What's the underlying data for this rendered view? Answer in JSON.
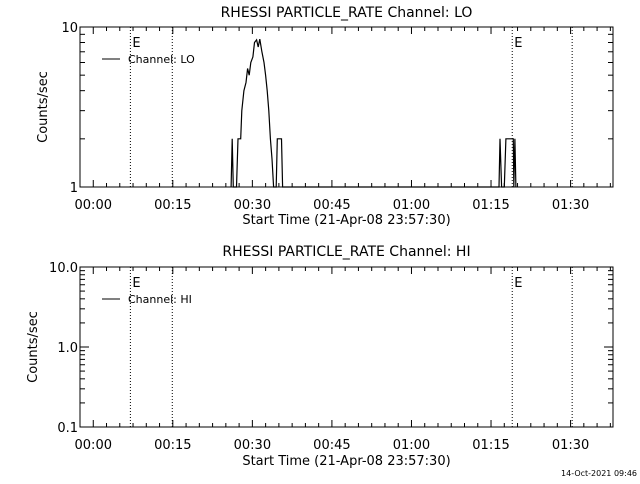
{
  "footer": {
    "timestamp": "14-Oct-2021 09:46"
  },
  "chart_data": [
    {
      "type": "line",
      "title": "RHESSI PARTICLE_RATE Channel: LO",
      "xlabel": "Start Time (21-Apr-08 23:57:30)",
      "ylabel": "Counts/sec",
      "x_unit": "minutes after start time",
      "x_ticks": [
        {
          "label": "00:00",
          "value": 2.5
        },
        {
          "label": "00:15",
          "value": 17.5
        },
        {
          "label": "00:30",
          "value": 32.5
        },
        {
          "label": "00:45",
          "value": 47.5
        },
        {
          "label": "01:00",
          "value": 62.5
        },
        {
          "label": "01:15",
          "value": 77.5
        },
        {
          "label": "01:30",
          "value": 92.5
        }
      ],
      "xlim": [
        0,
        100.5
      ],
      "yscale": "log",
      "ylim": [
        1,
        10
      ],
      "y_ticks": [
        {
          "label": "1",
          "value": 1
        },
        {
          "label": "10",
          "value": 10
        }
      ],
      "legend": {
        "position": "top-left",
        "entries": [
          "Channel: LO"
        ]
      },
      "markers": [
        {
          "x": 9.5,
          "label": "E"
        },
        {
          "x": 17.4,
          "label": ""
        },
        {
          "x": 81.5,
          "label": "E"
        },
        {
          "x": 92.8,
          "label": ""
        }
      ],
      "series": [
        {
          "name": "Channel: LO",
          "points": [
            [
              28.5,
              1
            ],
            [
              28.7,
              2
            ],
            [
              28.9,
              1
            ],
            [
              29.5,
              1
            ],
            [
              29.8,
              2
            ],
            [
              30.3,
              2
            ],
            [
              30.5,
              3
            ],
            [
              30.9,
              4
            ],
            [
              31.3,
              4.5
            ],
            [
              31.6,
              5.5
            ],
            [
              31.9,
              5
            ],
            [
              32.2,
              6
            ],
            [
              32.6,
              6.5
            ],
            [
              32.9,
              8
            ],
            [
              33.3,
              8.3
            ],
            [
              33.6,
              7.5
            ],
            [
              33.9,
              8.4
            ],
            [
              34.3,
              7
            ],
            [
              34.7,
              6
            ],
            [
              35.0,
              5
            ],
            [
              35.3,
              4
            ],
            [
              35.6,
              3
            ],
            [
              35.9,
              2
            ],
            [
              36.2,
              1.5
            ],
            [
              36.5,
              1
            ],
            [
              37.0,
              1
            ],
            [
              37.2,
              2
            ],
            [
              38.0,
              2
            ],
            [
              38.2,
              1
            ],
            [
              79.0,
              1
            ],
            [
              79.2,
              2
            ],
            [
              79.5,
              1
            ],
            [
              80.0,
              1
            ],
            [
              80.3,
              2
            ],
            [
              81.7,
              2
            ],
            [
              81.8,
              1
            ],
            [
              82.0,
              2
            ],
            [
              82.2,
              1
            ]
          ]
        }
      ]
    },
    {
      "type": "line",
      "title": "RHESSI PARTICLE_RATE Channel: HI",
      "xlabel": "Start Time (21-Apr-08 23:57:30)",
      "ylabel": "Counts/sec",
      "x_unit": "minutes after start time",
      "x_ticks": [
        {
          "label": "00:00",
          "value": 2.5
        },
        {
          "label": "00:15",
          "value": 17.5
        },
        {
          "label": "00:30",
          "value": 32.5
        },
        {
          "label": "00:45",
          "value": 47.5
        },
        {
          "label": "01:00",
          "value": 62.5
        },
        {
          "label": "01:15",
          "value": 77.5
        },
        {
          "label": "01:30",
          "value": 92.5
        }
      ],
      "xlim": [
        0,
        100.5
      ],
      "yscale": "log",
      "ylim": [
        0.1,
        10
      ],
      "y_ticks": [
        {
          "label": "0.1",
          "value": 0.1
        },
        {
          "label": "1.0",
          "value": 1
        },
        {
          "label": "10.0",
          "value": 10
        }
      ],
      "legend": {
        "position": "top-left",
        "entries": [
          "Channel: HI"
        ]
      },
      "markers": [
        {
          "x": 9.5,
          "label": "E"
        },
        {
          "x": 17.4,
          "label": ""
        },
        {
          "x": 81.5,
          "label": "E"
        },
        {
          "x": 92.8,
          "label": ""
        }
      ],
      "series": [
        {
          "name": "Channel: HI",
          "points": []
        }
      ]
    }
  ]
}
